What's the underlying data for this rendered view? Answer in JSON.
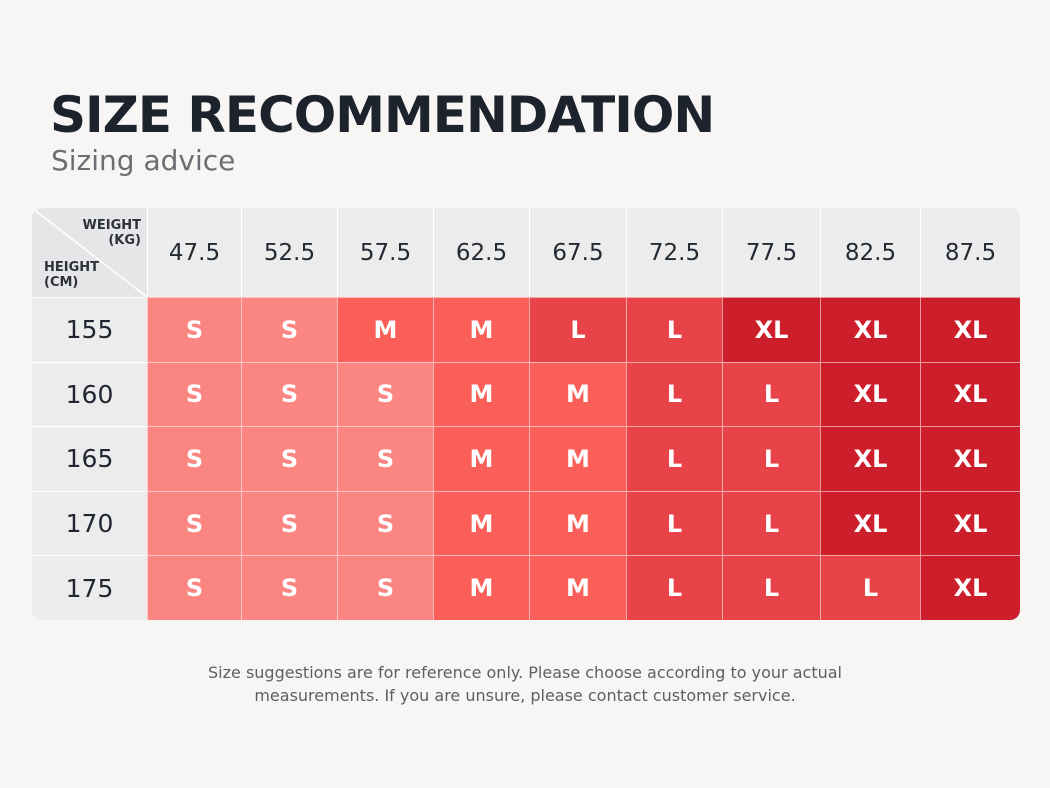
{
  "title": "SIZE RECOMMENDATION",
  "subtitle": "Sizing advice",
  "table": {
    "corner_weight_label": "WEIGHT (KG)",
    "corner_height_label": "HEIGHT (CM)",
    "weights": [
      "47.5",
      "52.5",
      "57.5",
      "62.5",
      "67.5",
      "72.5",
      "77.5",
      "82.5",
      "87.5"
    ],
    "rows": [
      {
        "height": "155",
        "sizes": [
          "S",
          "S",
          "M",
          "M",
          "L",
          "L",
          "XL",
          "XL",
          "XL"
        ]
      },
      {
        "height": "160",
        "sizes": [
          "S",
          "S",
          "S",
          "M",
          "M",
          "L",
          "L",
          "XL",
          "XL"
        ]
      },
      {
        "height": "165",
        "sizes": [
          "S",
          "S",
          "S",
          "M",
          "M",
          "L",
          "L",
          "XL",
          "XL"
        ]
      },
      {
        "height": "170",
        "sizes": [
          "S",
          "S",
          "S",
          "M",
          "M",
          "L",
          "L",
          "XL",
          "XL"
        ]
      },
      {
        "height": "175",
        "sizes": [
          "S",
          "S",
          "S",
          "M",
          "M",
          "L",
          "L",
          "L",
          "XL"
        ]
      }
    ],
    "size_colors": {
      "S": "#fb8580",
      "M": "#fa5f59",
      "L": "#e84348",
      "XL": "#cc1f2b"
    }
  },
  "footnote_line1": "Size suggestions are for reference only. Please choose according to your actual",
  "footnote_line2": "measurements. If you are unsure, please contact customer service."
}
